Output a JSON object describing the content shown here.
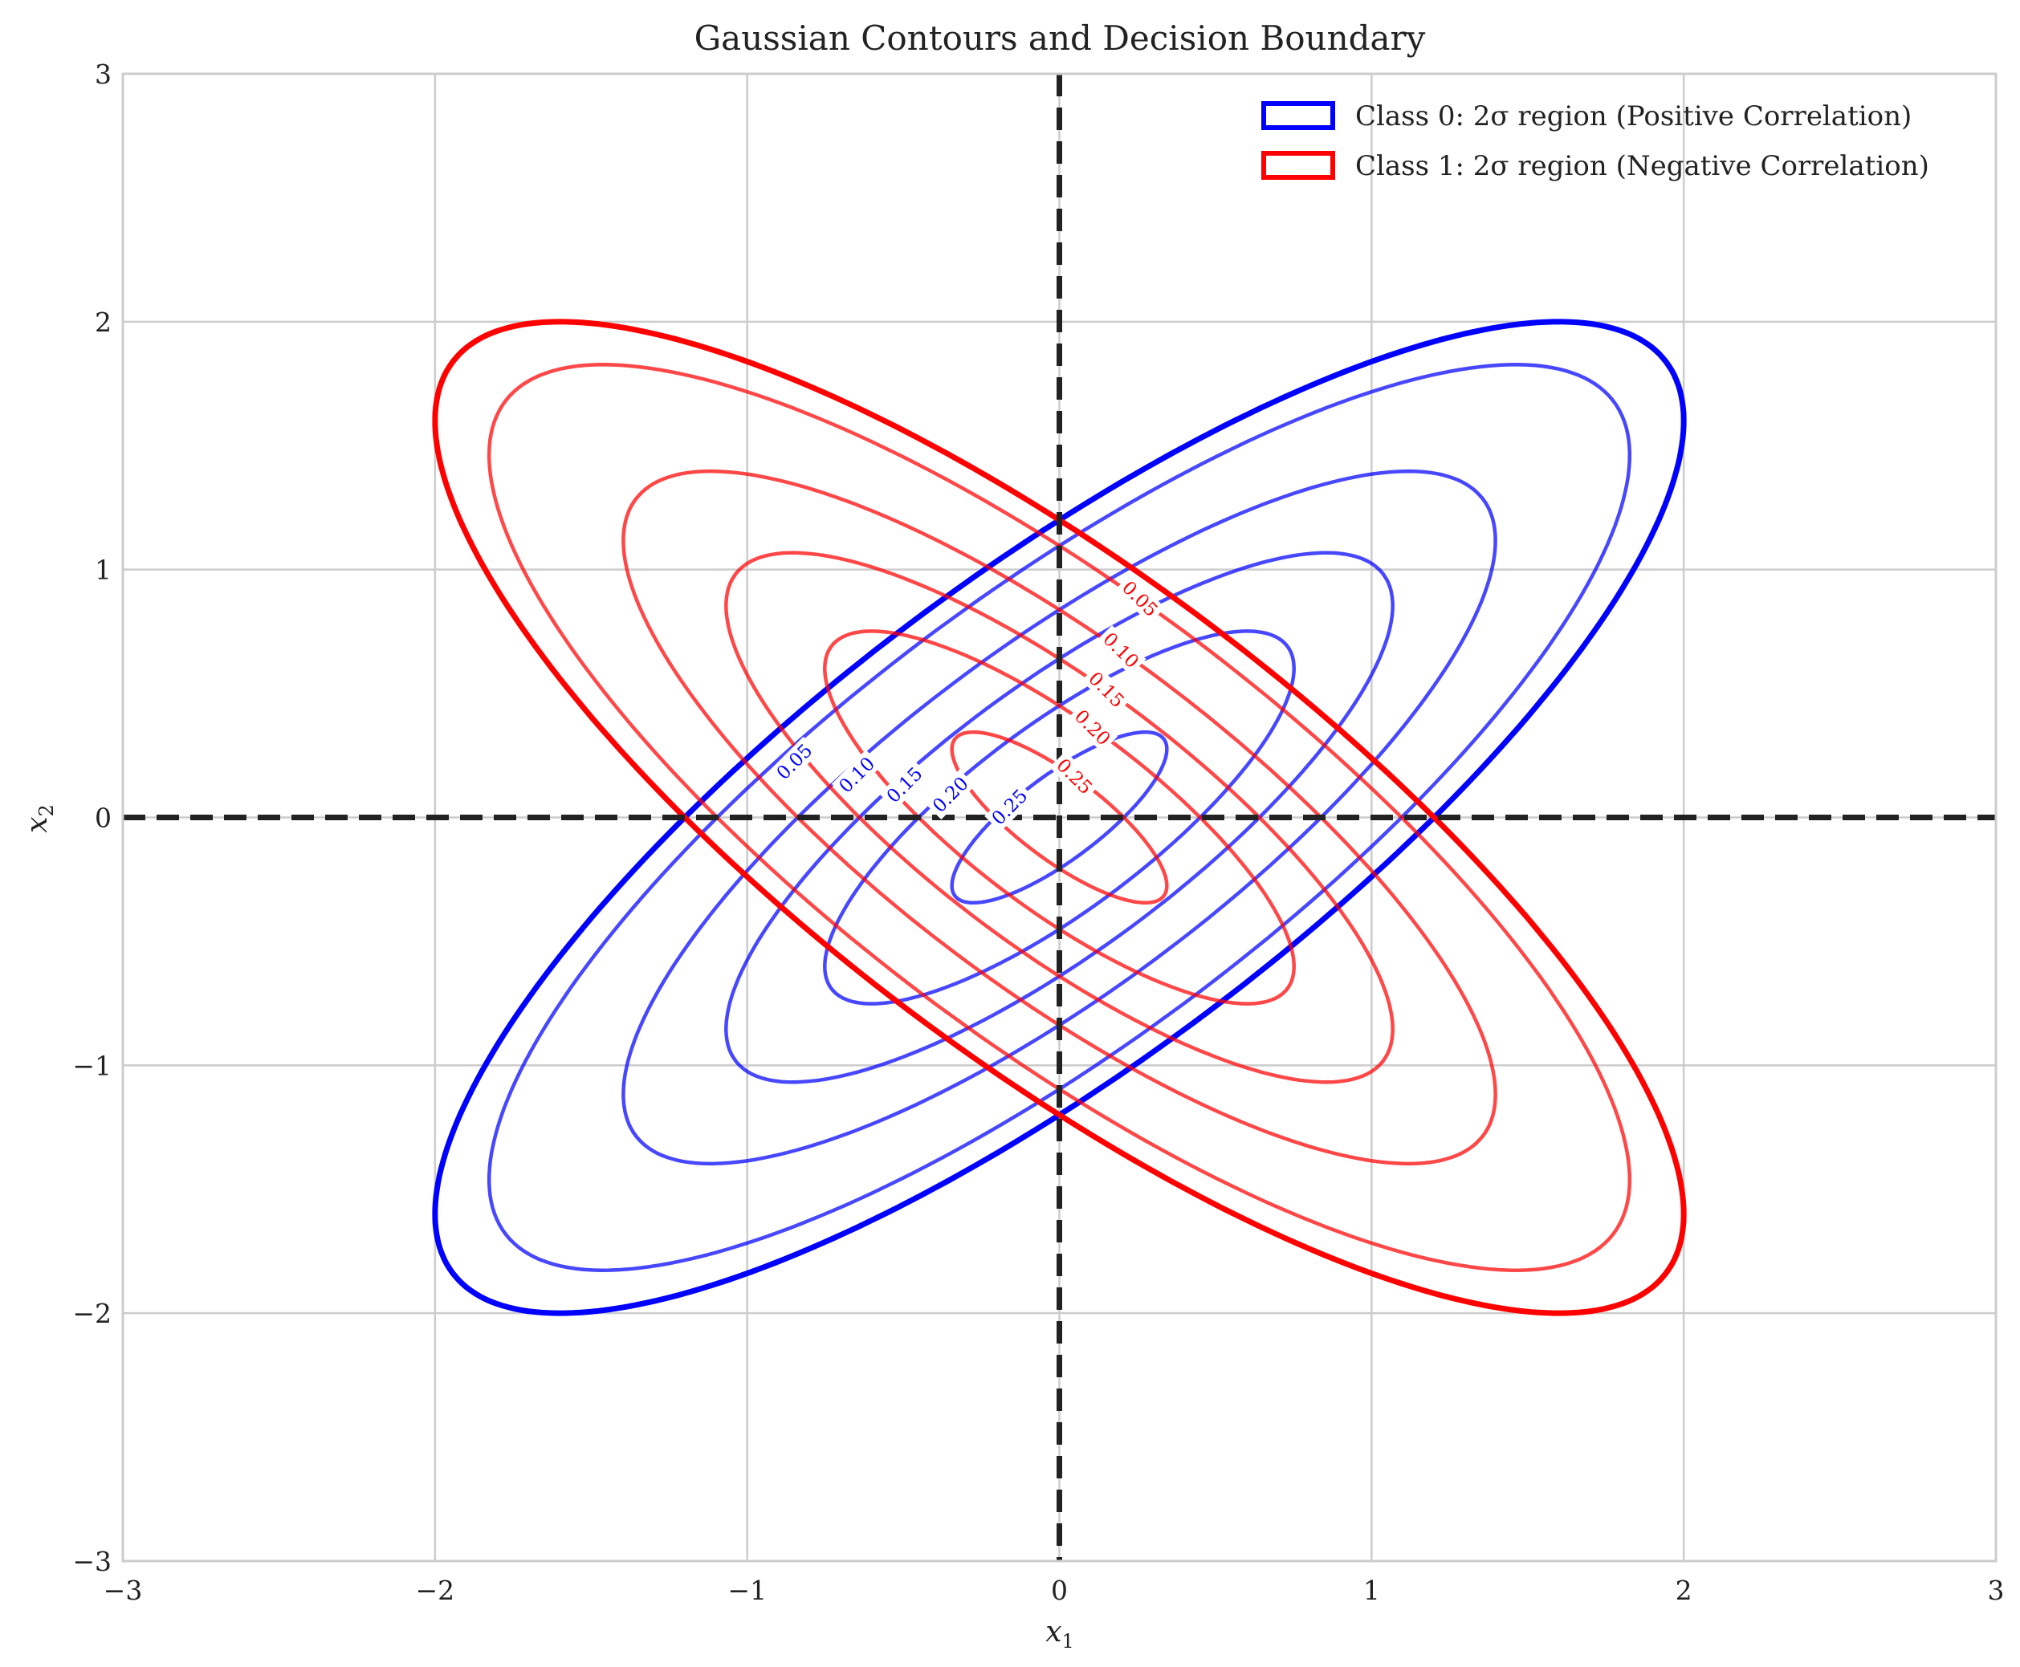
{
  "chart_data": {
    "type": "contour",
    "title": "Gaussian Contours and Decision Boundary",
    "xlabel": "x",
    "xlabel_sub": "1",
    "ylabel": "x",
    "ylabel_sub": "2",
    "xlim": [
      -3,
      3
    ],
    "ylim": [
      -3,
      3
    ],
    "xticks": [
      -3,
      -2,
      -1,
      0,
      1,
      2,
      3
    ],
    "yticks": [
      -3,
      -2,
      -1,
      0,
      1,
      2,
      3
    ],
    "xtick_labels": [
      "−3",
      "−2",
      "−1",
      "0",
      "1",
      "2",
      "3"
    ],
    "ytick_labels": [
      "−3",
      "−2",
      "−1",
      "0",
      "1",
      "2",
      "3"
    ],
    "grid": true,
    "legend_position": "top-right",
    "decision_boundary": {
      "lines": [
        "x1 = 0",
        "x2 = 0"
      ],
      "color": "#222222",
      "style": "dashed"
    },
    "series": [
      {
        "name": "Class 0: 2σ region (Positive Correlation)",
        "color": "#0000ff",
        "mean": [
          0,
          0
        ],
        "covariance": [
          [
            1,
            0.8
          ],
          [
            0.8,
            1
          ]
        ],
        "contour_levels": [
          0.05,
          0.1,
          0.15,
          0.2,
          0.25
        ],
        "contour_labels": [
          "0.05",
          "0.10",
          "0.15",
          "0.20",
          "0.25"
        ],
        "region_mahalanobis": 2
      },
      {
        "name": "Class 1: 2σ region (Negative Correlation)",
        "color": "#ff0000",
        "mean": [
          0,
          0
        ],
        "covariance": [
          [
            1,
            -0.8
          ],
          [
            -0.8,
            1
          ]
        ],
        "contour_levels": [
          0.05,
          0.1,
          0.15,
          0.2,
          0.25
        ],
        "contour_labels": [
          "0.05",
          "0.10",
          "0.15",
          "0.20",
          "0.25"
        ],
        "region_mahalanobis": 2
      }
    ]
  }
}
